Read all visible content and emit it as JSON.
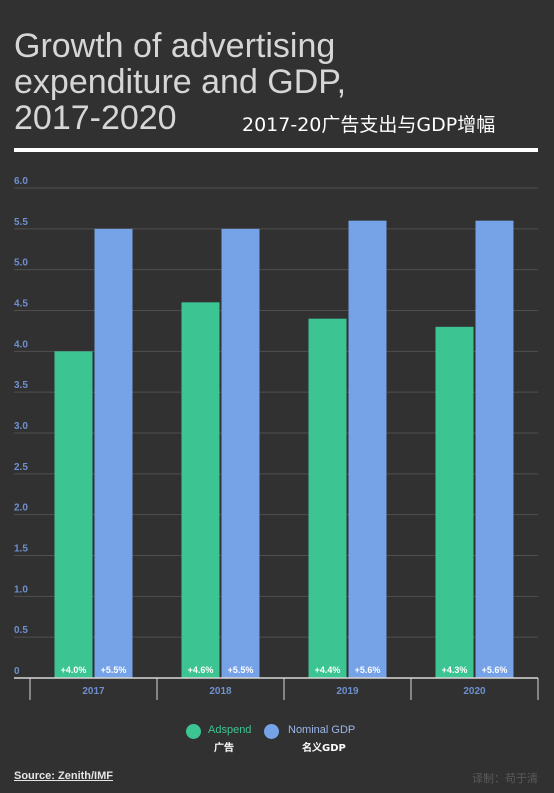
{
  "header": {
    "title": "Growth of advertising expenditure and GDP, 2017-2020",
    "subtitle": "2017-20广告支出与GDP增幅"
  },
  "footer": {
    "source": "Source: Zenith/IMF",
    "credit": "译制：苟于清"
  },
  "legend": [
    {
      "label": "Adspend",
      "sub": "广告",
      "color": "#3cc592",
      "label_color": "#3cc592"
    },
    {
      "label": "Nominal GDP",
      "sub": "名义GDP",
      "color": "#76a2e8",
      "label_color": "#9bb7ea"
    }
  ],
  "chart_data": {
    "type": "bar",
    "categories": [
      "2017",
      "2018",
      "2019",
      "2020"
    ],
    "series": [
      {
        "name": "Adspend",
        "values": [
          4.0,
          4.6,
          4.4,
          4.3
        ],
        "labels": [
          "+4.0%",
          "+4.6%",
          "+4.4%",
          "+4.3%"
        ],
        "color": "#3cc592"
      },
      {
        "name": "Nominal GDP",
        "values": [
          5.5,
          5.5,
          5.6,
          5.6
        ],
        "labels": [
          "+5.5%",
          "+5.5%",
          "+5.6%",
          "+5.6%"
        ],
        "color": "#76a2e8"
      }
    ],
    "yticks": [
      "0",
      "0.5",
      "1.0",
      "1.5",
      "2.0",
      "2.5",
      "3.0",
      "3.5",
      "4.0",
      "4.5",
      "5.0",
      "5.5",
      "6.0"
    ],
    "ylim": [
      0,
      6.0
    ],
    "grid": true,
    "legend_position": "bottom"
  }
}
